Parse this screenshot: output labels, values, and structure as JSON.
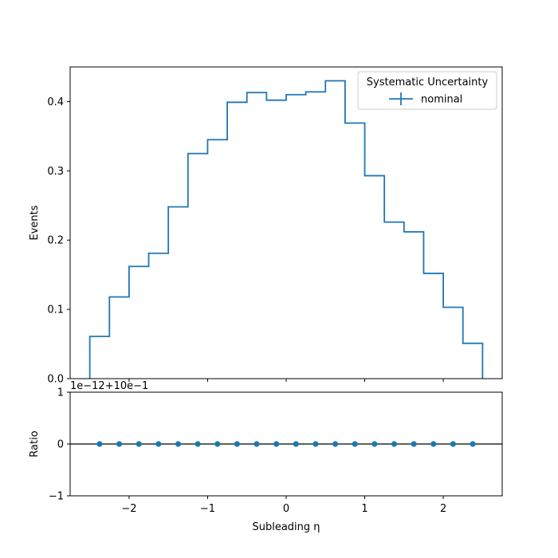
{
  "colors": {
    "series": "#1f77b4",
    "axis": "#000000",
    "background": "#ffffff"
  },
  "chart_data": [
    {
      "type": "line",
      "drawstyle": "steps",
      "xlabel": "",
      "ylabel": "Events",
      "xlim": [
        -2.75,
        2.75
      ],
      "ylim": [
        0.0,
        0.45
      ],
      "x_ticks": [
        -2,
        -1,
        0,
        1,
        2
      ],
      "x_ticklabels_shown": false,
      "y_ticks": [
        0.0,
        0.1,
        0.2,
        0.3,
        0.4
      ],
      "y_ticklabels": [
        "0.0",
        "0.1",
        "0.2",
        "0.3",
        "0.4"
      ],
      "grid": false,
      "bin_edges": [
        -2.5,
        -2.25,
        -2.0,
        -1.75,
        -1.5,
        -1.25,
        -1.0,
        -0.75,
        -0.5,
        -0.25,
        0.0,
        0.25,
        0.5,
        0.75,
        1.0,
        1.25,
        1.5,
        1.75,
        2.0,
        2.25,
        2.5
      ],
      "series": [
        {
          "name": "nominal",
          "values": [
            0.061,
            0.118,
            0.162,
            0.181,
            0.248,
            0.325,
            0.345,
            0.399,
            0.413,
            0.402,
            0.41,
            0.414,
            0.43,
            0.369,
            0.293,
            0.226,
            0.212,
            0.152,
            0.103,
            0.051
          ]
        }
      ],
      "legend": {
        "title": "Systematic Uncertainty",
        "placement": "top-right",
        "entries": [
          "nominal"
        ]
      }
    },
    {
      "type": "scatter",
      "xlabel": "Subleading η",
      "ylabel": "Ratio",
      "xlim": [
        -2.75,
        2.75
      ],
      "ylim": [
        -1,
        1
      ],
      "x_ticks": [
        -2,
        -1,
        0,
        1,
        2
      ],
      "x_ticklabels": [
        "−2",
        "−1",
        "0",
        "1",
        "2"
      ],
      "y_ticks": [
        -1,
        0,
        1
      ],
      "y_ticklabels": [
        "−1",
        "0",
        "1"
      ],
      "offset_text": "1e−12+10e−1",
      "reference_line": 0,
      "grid": false,
      "x": [
        -2.375,
        -2.125,
        -1.875,
        -1.625,
        -1.375,
        -1.125,
        -0.875,
        -0.625,
        -0.375,
        -0.125,
        0.125,
        0.375,
        0.625,
        0.875,
        1.125,
        1.375,
        1.625,
        1.875,
        2.125,
        2.375
      ],
      "y": [
        0,
        0,
        0,
        0,
        0,
        0,
        0,
        0,
        0,
        0,
        0,
        0,
        0,
        0,
        0,
        0,
        0,
        0,
        0,
        0
      ]
    }
  ]
}
